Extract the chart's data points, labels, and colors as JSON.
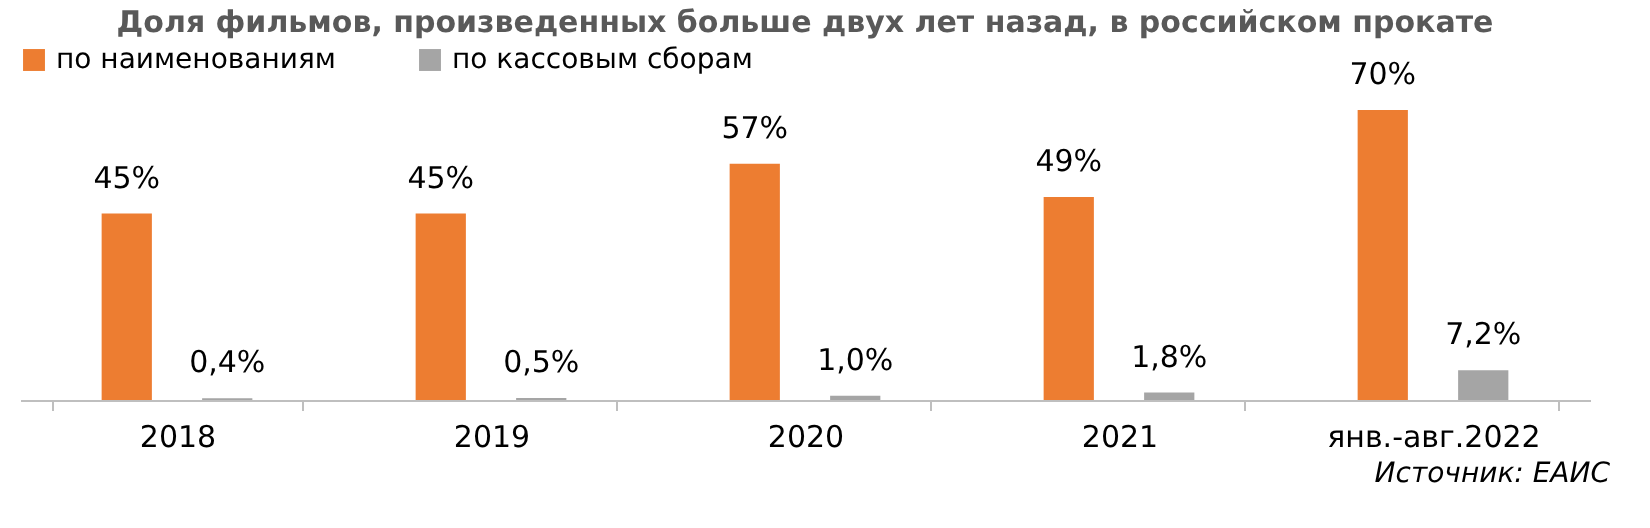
{
  "chart_data": {
    "type": "bar",
    "title": "Доля фильмов, произведенных больше двух лет назад, в российском прокате",
    "categories": [
      "2018",
      "2019",
      "2020",
      "2021",
      "янв.-авг.2022"
    ],
    "series": [
      {
        "name": "по наименованиям",
        "color": "#ed7d31",
        "values": [
          45,
          45,
          57,
          49,
          70
        ],
        "value_labels": [
          "45%",
          "45%",
          "57%",
          "49%",
          "70%"
        ]
      },
      {
        "name": "по кассовым сборам",
        "color": "#a5a5a5",
        "values": [
          0.4,
          0.5,
          1.0,
          1.8,
          7.2
        ],
        "value_labels": [
          "0,4%",
          "0,5%",
          "1,0%",
          "1,8%",
          "7,2%"
        ]
      }
    ],
    "legend": "top",
    "annotations": [
      "Источник: ЕАИС"
    ]
  }
}
